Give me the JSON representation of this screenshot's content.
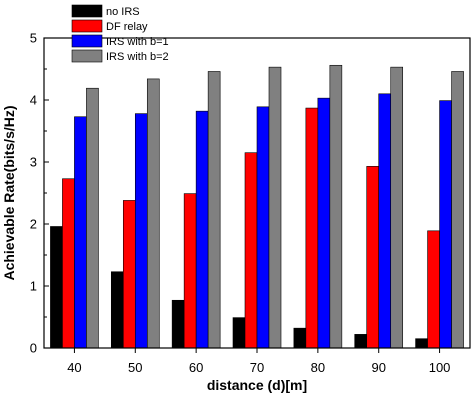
{
  "chart_data": {
    "type": "bar",
    "xlabel": "distance (d)[m]",
    "ylabel": "Achievable Rate(bits/s/Hz)",
    "categories": [
      "40",
      "50",
      "60",
      "70",
      "80",
      "90",
      "100"
    ],
    "ylim": [
      0,
      5
    ],
    "yticks": [
      "0",
      "1",
      "2",
      "3",
      "4",
      "5"
    ],
    "grid": false,
    "legend_position": "top-left",
    "series": [
      {
        "name": "no IRS",
        "color": "#000000",
        "values": [
          1.96,
          1.23,
          0.77,
          0.49,
          0.32,
          0.22,
          0.15
        ]
      },
      {
        "name": "DF relay",
        "color": "#ff0000",
        "values": [
          2.73,
          2.38,
          2.49,
          3.15,
          3.87,
          2.93,
          1.89
        ]
      },
      {
        "name": "IRS with b=1",
        "color": "#0000ff",
        "values": [
          3.73,
          3.78,
          3.82,
          3.89,
          4.03,
          4.1,
          3.99
        ]
      },
      {
        "name": "IRS with b=2",
        "color": "#808080",
        "values": [
          4.19,
          4.34,
          4.46,
          4.53,
          4.56,
          4.53,
          4.46
        ]
      }
    ]
  }
}
